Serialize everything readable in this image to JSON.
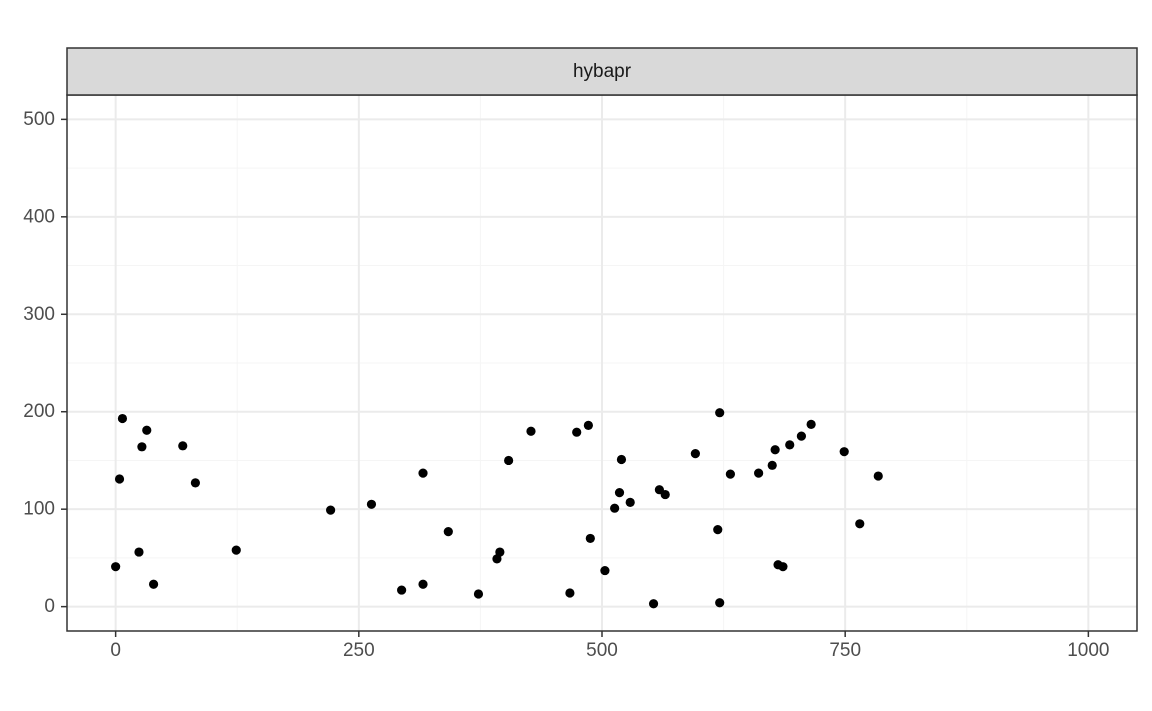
{
  "chart_data": {
    "type": "scatter",
    "panel_title": "hybapr",
    "title": "",
    "xlabel": "",
    "ylabel": "",
    "xlim": [
      -50,
      1050
    ],
    "ylim": [
      -25,
      525
    ],
    "x_ticks": [
      0,
      250,
      500,
      750,
      1000
    ],
    "y_ticks": [
      0,
      100,
      200,
      300,
      400,
      500
    ],
    "x_tick_labels": [
      "0",
      "250",
      "500",
      "750",
      "1000"
    ],
    "y_tick_labels": [
      "0",
      "100",
      "200",
      "300",
      "400",
      "500"
    ],
    "grid": true,
    "point_color": "#000000",
    "points": [
      [
        0,
        41
      ],
      [
        4,
        131
      ],
      [
        7,
        193
      ],
      [
        24,
        56
      ],
      [
        27,
        164
      ],
      [
        32,
        181
      ],
      [
        39,
        23
      ],
      [
        69,
        165
      ],
      [
        82,
        127
      ],
      [
        124,
        58
      ],
      [
        221,
        99
      ],
      [
        263,
        105
      ],
      [
        294,
        17
      ],
      [
        316,
        23
      ],
      [
        316,
        137
      ],
      [
        342,
        77
      ],
      [
        373,
        13
      ],
      [
        392,
        49
      ],
      [
        395,
        56
      ],
      [
        404,
        150
      ],
      [
        427,
        180
      ],
      [
        467,
        14
      ],
      [
        474,
        179
      ],
      [
        486,
        186
      ],
      [
        488,
        70
      ],
      [
        503,
        37
      ],
      [
        513,
        101
      ],
      [
        518,
        117
      ],
      [
        520,
        151
      ],
      [
        529,
        107
      ],
      [
        553,
        3
      ],
      [
        559,
        120
      ],
      [
        565,
        115
      ],
      [
        596,
        157
      ],
      [
        619,
        79
      ],
      [
        621,
        4
      ],
      [
        621,
        199
      ],
      [
        632,
        136
      ],
      [
        661,
        137
      ],
      [
        675,
        145
      ],
      [
        678,
        161
      ],
      [
        681,
        43
      ],
      [
        686,
        41
      ],
      [
        693,
        166
      ],
      [
        705,
        175
      ],
      [
        715,
        187
      ],
      [
        749,
        159
      ],
      [
        765,
        85
      ],
      [
        784,
        134
      ]
    ]
  },
  "colors": {
    "panel_border": "#333333",
    "strip_fill": "#d9d9d9",
    "grid_major": "#ebebeb",
    "grid_minor": "#f5f5f5"
  }
}
